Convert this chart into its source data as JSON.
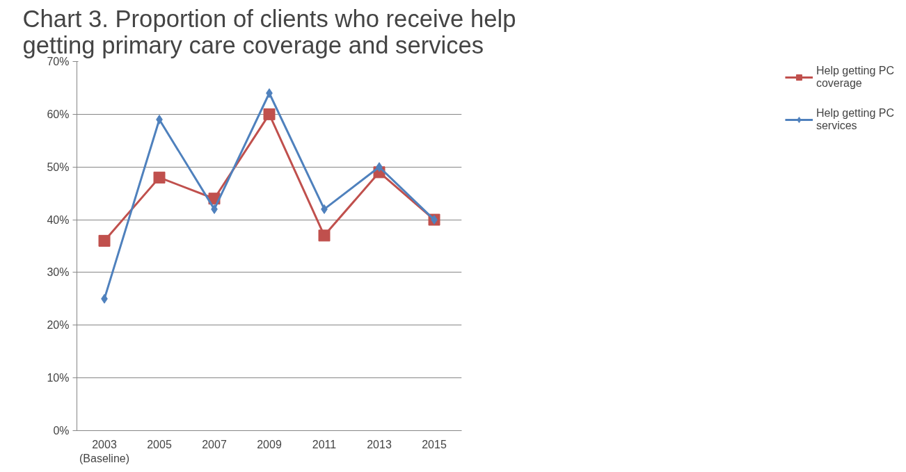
{
  "chart_data": {
    "type": "line",
    "title": "Chart 3. Proportion of clients who receive help getting primary care coverage and services",
    "categories": [
      "2003\n(Baseline)",
      "2005",
      "2007",
      "2009",
      "2011",
      "2013",
      "2015"
    ],
    "series": [
      {
        "name": "Help getting PC coverage",
        "color": "#c0504d",
        "marker": "square",
        "values": [
          36,
          48,
          44,
          60,
          37,
          49,
          40
        ]
      },
      {
        "name": "Help getting PC services",
        "color": "#4f81bd",
        "marker": "diamond",
        "values": [
          25,
          59,
          42,
          64,
          42,
          50,
          40
        ]
      }
    ],
    "ylim": [
      0,
      70
    ],
    "yticks": [
      {
        "value": 0,
        "label": "0%"
      },
      {
        "value": 10,
        "label": "10%"
      },
      {
        "value": 20,
        "label": "20%"
      },
      {
        "value": 30,
        "label": "30%"
      },
      {
        "value": 40,
        "label": "40%"
      },
      {
        "value": 50,
        "label": "50%"
      },
      {
        "value": 60,
        "label": "60%"
      },
      {
        "value": 70,
        "label": "70%"
      }
    ],
    "grid": "y",
    "legend": "right",
    "line_style": "solid"
  }
}
